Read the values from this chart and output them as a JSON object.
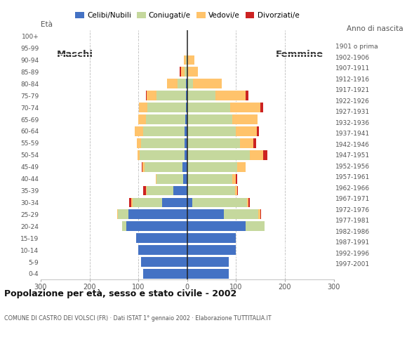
{
  "age_groups": [
    "0-4",
    "5-9",
    "10-14",
    "15-19",
    "20-24",
    "25-29",
    "30-34",
    "35-39",
    "40-44",
    "45-49",
    "50-54",
    "55-59",
    "60-64",
    "65-69",
    "70-74",
    "75-79",
    "80-84",
    "85-89",
    "90-94",
    "95-99",
    "100+"
  ],
  "birth_years": [
    "1997-2001",
    "1992-1996",
    "1987-1991",
    "1982-1986",
    "1977-1981",
    "1972-1976",
    "1967-1971",
    "1962-1966",
    "1957-1961",
    "1952-1956",
    "1947-1951",
    "1942-1946",
    "1937-1941",
    "1932-1936",
    "1927-1931",
    "1922-1926",
    "1917-1921",
    "1912-1916",
    "1907-1911",
    "1902-1906",
    "1901 o prima"
  ],
  "males_celibi": [
    90,
    95,
    100,
    105,
    125,
    120,
    52,
    28,
    8,
    10,
    5,
    5,
    5,
    4,
    3,
    3,
    2,
    0,
    0,
    0,
    0
  ],
  "males_coniugati": [
    0,
    0,
    0,
    0,
    8,
    22,
    60,
    55,
    55,
    78,
    92,
    90,
    85,
    80,
    78,
    60,
    18,
    5,
    2,
    0,
    0
  ],
  "males_vedovi": [
    0,
    0,
    0,
    0,
    0,
    2,
    2,
    2,
    2,
    3,
    5,
    8,
    18,
    16,
    18,
    20,
    22,
    8,
    5,
    0,
    0
  ],
  "males_divorziati": [
    0,
    0,
    0,
    0,
    0,
    0,
    5,
    5,
    0,
    2,
    0,
    0,
    0,
    0,
    0,
    2,
    0,
    2,
    0,
    0,
    0
  ],
  "females_nubili": [
    85,
    85,
    100,
    100,
    120,
    75,
    10,
    0,
    0,
    0,
    0,
    0,
    0,
    0,
    0,
    0,
    0,
    0,
    0,
    0,
    0
  ],
  "females_coniugate": [
    0,
    0,
    0,
    0,
    38,
    70,
    112,
    98,
    92,
    102,
    128,
    108,
    100,
    92,
    88,
    58,
    12,
    0,
    0,
    0,
    0
  ],
  "females_vedove": [
    0,
    0,
    0,
    0,
    0,
    4,
    4,
    4,
    8,
    18,
    28,
    28,
    42,
    52,
    62,
    62,
    58,
    22,
    15,
    0,
    0
  ],
  "females_divorziate": [
    0,
    0,
    0,
    0,
    0,
    2,
    2,
    2,
    2,
    0,
    8,
    5,
    5,
    0,
    5,
    5,
    0,
    0,
    0,
    0,
    0
  ],
  "color_celibi": "#4472c4",
  "color_coniugati": "#c5d89d",
  "color_vedovi": "#ffc36b",
  "color_divorziati": "#cc2222",
  "title": "Popolazione per età, sesso e stato civile - 2002",
  "subtitle": "COMUNE DI CASTRO DEI VOLSCI (FR) · Dati ISTAT 1° gennaio 2002 · Elaborazione TUTTITALIA.IT",
  "label_eta": "Età",
  "label_anno": "Anno di nascita",
  "label_maschi": "Maschi",
  "label_femmine": "Femmine",
  "legend_labels": [
    "Celibi/Nubili",
    "Coniugati/e",
    "Vedovi/e",
    "Divorziati/e"
  ],
  "xlim": 300,
  "background_color": "#ffffff",
  "grid_color": "#bbbbbb"
}
